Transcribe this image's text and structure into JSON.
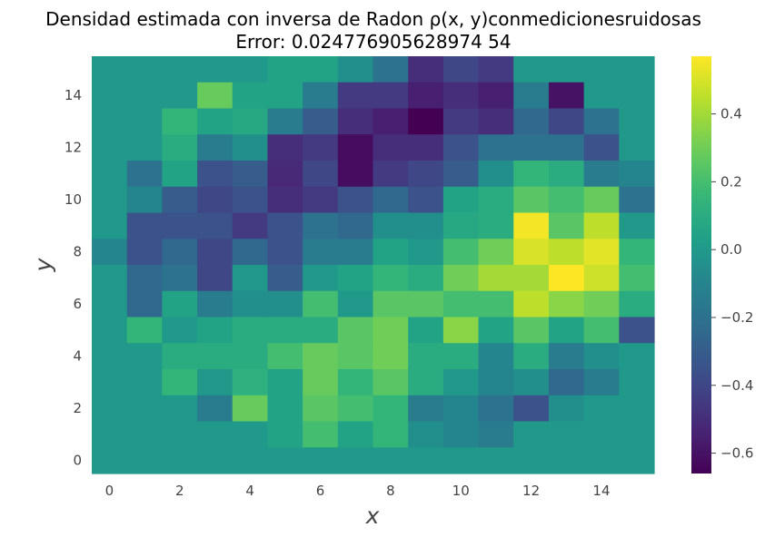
{
  "chart_data": {
    "type": "heatmap",
    "title_line1": "Densidad estimada con inversa de Radon ρ(x, y)conmedicionesruidosas",
    "title_line2": "Error: 0.024776905628974 54",
    "xlabel": "x",
    "ylabel": "y",
    "x": [
      0,
      1,
      2,
      3,
      4,
      5,
      6,
      7,
      8,
      9,
      10,
      11,
      12,
      13,
      14,
      15
    ],
    "y": [
      0,
      1,
      2,
      3,
      4,
      5,
      6,
      7,
      8,
      9,
      10,
      11,
      12,
      13,
      14,
      15
    ],
    "xlim": [
      -0.5,
      15.5
    ],
    "ylim": [
      -0.5,
      15.5
    ],
    "x_ticks": [
      0,
      2,
      4,
      6,
      8,
      10,
      12,
      14
    ],
    "y_ticks": [
      0,
      2,
      4,
      6,
      8,
      10,
      12,
      14
    ],
    "x_tick_labels": [
      "0",
      "2",
      "4",
      "6",
      "8",
      "10",
      "12",
      "14"
    ],
    "y_tick_labels": [
      "0",
      "2",
      "4",
      "6",
      "8",
      "10",
      "12",
      "14"
    ],
    "colormap": "viridis",
    "vmin": -0.66,
    "vmax": 0.57,
    "colorbar_ticks": [
      0.4,
      0.2,
      0.0,
      -0.2,
      -0.4,
      -0.6
    ],
    "colorbar_tick_labels": [
      "0.4",
      "0.2",
      "0.0",
      "−0.2",
      "−0.4",
      "−0.6"
    ],
    "grid": false,
    "values_rows_top_to_bottom": [
      [
        0.0,
        0.0,
        0.0,
        0.0,
        0.0,
        0.05,
        0.05,
        -0.05,
        -0.2,
        -0.5,
        -0.4,
        -0.45,
        0.0,
        0.0,
        0.0,
        0.0
      ],
      [
        0.0,
        0.0,
        0.0,
        0.28,
        0.05,
        0.05,
        -0.15,
        -0.45,
        -0.45,
        -0.55,
        -0.5,
        -0.55,
        -0.15,
        -0.6,
        0.0,
        0.0
      ],
      [
        0.0,
        0.0,
        0.15,
        0.05,
        0.08,
        -0.15,
        -0.3,
        -0.5,
        -0.55,
        -0.66,
        -0.45,
        -0.5,
        -0.25,
        -0.4,
        -0.2,
        0.0
      ],
      [
        0.0,
        0.0,
        0.1,
        -0.15,
        -0.05,
        -0.5,
        -0.45,
        -0.62,
        -0.5,
        -0.5,
        -0.35,
        -0.2,
        -0.2,
        -0.2,
        -0.35,
        0.0
      ],
      [
        0.0,
        -0.2,
        0.05,
        -0.35,
        -0.3,
        -0.52,
        -0.4,
        -0.62,
        -0.45,
        -0.4,
        -0.3,
        -0.05,
        0.15,
        0.1,
        -0.15,
        -0.1
      ],
      [
        0.0,
        -0.1,
        -0.3,
        -0.4,
        -0.35,
        -0.5,
        -0.45,
        -0.35,
        -0.25,
        -0.35,
        0.05,
        0.1,
        0.25,
        0.2,
        0.28,
        -0.2
      ],
      [
        0.0,
        -0.35,
        -0.35,
        -0.35,
        -0.45,
        -0.35,
        -0.2,
        -0.25,
        -0.05,
        -0.05,
        0.08,
        0.1,
        0.55,
        0.25,
        0.45,
        0.0
      ],
      [
        -0.1,
        -0.35,
        -0.25,
        -0.4,
        -0.25,
        -0.35,
        -0.15,
        -0.15,
        0.05,
        0.0,
        0.2,
        0.3,
        0.5,
        0.45,
        0.52,
        0.15
      ],
      [
        0.0,
        -0.25,
        -0.2,
        -0.4,
        0.0,
        -0.3,
        0.0,
        0.05,
        0.15,
        0.1,
        0.3,
        0.4,
        0.4,
        0.57,
        0.48,
        0.2
      ],
      [
        0.0,
        -0.25,
        0.05,
        -0.15,
        -0.05,
        -0.05,
        0.2,
        0.0,
        0.25,
        0.25,
        0.2,
        0.2,
        0.45,
        0.35,
        0.3,
        0.1
      ],
      [
        0.0,
        0.15,
        0.0,
        0.05,
        0.1,
        0.1,
        0.1,
        0.25,
        0.3,
        0.05,
        0.35,
        0.05,
        0.25,
        0.05,
        0.2,
        -0.35
      ],
      [
        0.0,
        0.0,
        0.1,
        0.1,
        0.1,
        0.2,
        0.28,
        0.25,
        0.3,
        0.1,
        0.1,
        -0.1,
        0.1,
        -0.15,
        -0.05,
        0.0
      ],
      [
        0.0,
        0.0,
        0.15,
        0.0,
        0.12,
        0.05,
        0.28,
        0.15,
        0.25,
        0.1,
        0.0,
        -0.1,
        -0.05,
        -0.25,
        -0.15,
        0.0
      ],
      [
        0.0,
        0.0,
        0.0,
        -0.15,
        0.28,
        0.05,
        0.25,
        0.2,
        0.15,
        -0.15,
        -0.1,
        -0.2,
        -0.35,
        -0.05,
        0.0,
        0.0
      ],
      [
        0.0,
        0.0,
        0.0,
        0.0,
        0.0,
        0.05,
        0.2,
        0.05,
        0.15,
        -0.05,
        -0.1,
        -0.15,
        0.0,
        0.0,
        0.0,
        0.0
      ],
      [
        0.0,
        0.0,
        0.0,
        0.0,
        0.0,
        0.0,
        0.0,
        0.0,
        0.0,
        0.0,
        0.0,
        0.0,
        0.0,
        0.0,
        0.0,
        0.0
      ]
    ]
  }
}
